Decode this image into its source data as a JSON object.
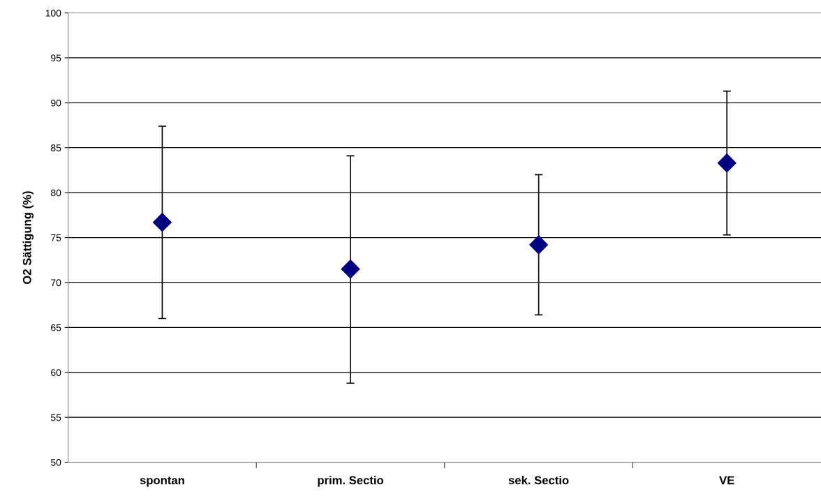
{
  "chart_data": {
    "type": "scatter",
    "ylabel": "O2 Sättigung (%)",
    "categories": [
      "spontan",
      "prim. Sectio",
      "sek. Sectio",
      "VE"
    ],
    "series": [
      {
        "color": "#000080",
        "values": [
          76.7,
          71.5,
          74.2,
          83.3
        ],
        "errors": [
          [
            66.0,
            87.4
          ],
          [
            58.8,
            84.1
          ],
          [
            66.4,
            82.0
          ],
          [
            75.3,
            91.3
          ]
        ]
      }
    ],
    "ylim": [
      50,
      100
    ],
    "yticks": [
      50,
      55,
      60,
      65,
      70,
      75,
      80,
      85,
      90,
      95,
      100
    ],
    "grid": "y",
    "marker": "diamond"
  }
}
